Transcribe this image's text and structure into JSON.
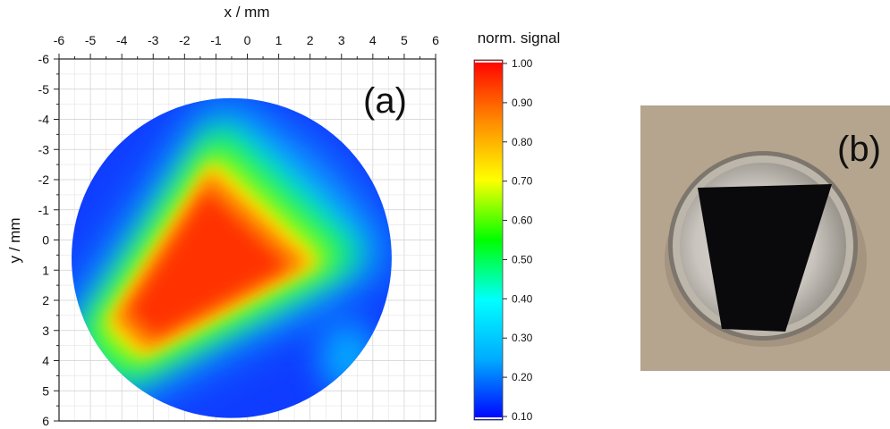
{
  "chart_data": {
    "type": "heatmap",
    "panel_label": "(a)",
    "xlabel": "x / mm",
    "ylabel": "y / mm",
    "xlim": [
      -6,
      6
    ],
    "ylim": [
      -6,
      6
    ],
    "x_axis_position": "top",
    "y_axis_inverted": true,
    "grid": true,
    "x_ticks": [
      "-6",
      "-5",
      "-4",
      "-3",
      "-2",
      "-1",
      "0",
      "1",
      "2",
      "3",
      "4",
      "5",
      "6"
    ],
    "y_ticks": [
      "-6",
      "-5",
      "-4",
      "-3",
      "-2",
      "-1",
      "0",
      "1",
      "2",
      "3",
      "4",
      "5",
      "6"
    ],
    "colorbar": {
      "label": "norm. signal",
      "range": [
        0.1,
        1.0
      ],
      "ticks": [
        "0.10",
        "0.20",
        "0.30",
        "0.40",
        "0.50",
        "0.60",
        "0.70",
        "0.80",
        "0.90",
        "1.00"
      ],
      "colormap": [
        "#0000ff",
        "#00aaff",
        "#00ffff",
        "#00ff00",
        "#ffff00",
        "#ff8800",
        "#ff0000"
      ]
    },
    "sample_outline_radius_mm": 5.1,
    "sample_outline_center_mm": [
      -0.5,
      0.6
    ],
    "hotspot_polygon_mm": [
      [
        -1.2,
        -2.2
      ],
      [
        1.9,
        0.8
      ],
      [
        -3.2,
        3.6
      ],
      [
        -4.2,
        2.6
      ]
    ],
    "hotspot_peak_value": 1.0,
    "background_value": 0.15
  },
  "photo": {
    "panel_label": "(b)",
    "background_color": "#b5a48e",
    "sample_color": "#0a0a0c",
    "rim_color": "#8c8478"
  }
}
